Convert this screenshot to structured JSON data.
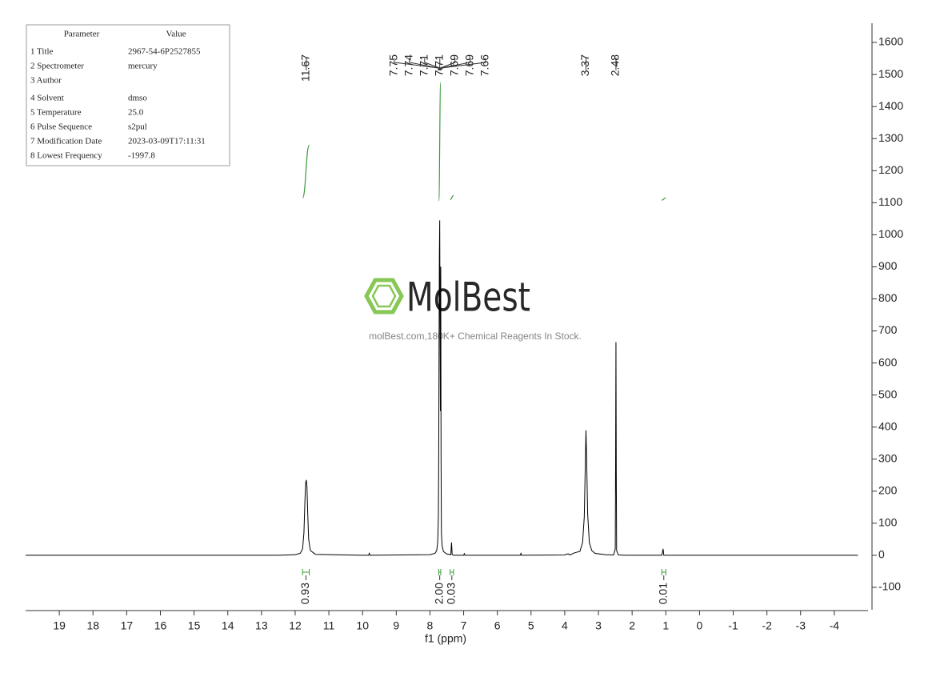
{
  "chart_data": {
    "type": "line",
    "xlabel": "f1 (ppm)",
    "color": "#000000",
    "integral_color": "#3a9a3a",
    "xlim": [
      20,
      -5
    ],
    "xticks": [
      19,
      18,
      17,
      16,
      15,
      14,
      13,
      12,
      11,
      10,
      9,
      8,
      7,
      6,
      5,
      4,
      3,
      2,
      1,
      0,
      -1,
      -2,
      -3,
      -4
    ],
    "ylim": [
      -170,
      1660
    ],
    "yticks": [
      -100,
      0,
      100,
      200,
      300,
      400,
      500,
      600,
      700,
      800,
      900,
      1000,
      1100,
      1200,
      1300,
      1400,
      1500,
      1600
    ],
    "x": [
      20,
      12.5,
      12.0,
      11.85,
      11.78,
      11.74,
      11.71,
      11.69,
      11.67,
      11.65,
      11.63,
      11.6,
      11.55,
      11.4,
      10.0,
      9.82,
      9.8,
      9.78,
      8.0,
      7.85,
      7.8,
      7.77,
      7.75,
      7.74,
      7.73,
      7.72,
      7.71,
      7.7,
      7.69,
      7.68,
      7.67,
      7.66,
      7.64,
      7.6,
      7.5,
      7.38,
      7.36,
      7.34,
      7.3,
      7.0,
      6.98,
      6.96,
      5.4,
      5.32,
      5.3,
      5.28,
      4.0,
      3.9,
      3.85,
      3.7,
      3.55,
      3.47,
      3.42,
      3.39,
      3.37,
      3.35,
      3.32,
      3.27,
      3.2,
      3.1,
      2.8,
      2.55,
      2.5,
      2.49,
      2.48,
      2.47,
      2.46,
      2.41,
      2.2,
      1.12,
      1.08,
      1.06,
      1.02,
      0.5,
      -4.7
    ],
    "values": [
      0,
      0,
      2,
      6,
      20,
      70,
      170,
      225,
      235,
      215,
      140,
      50,
      15,
      3,
      0,
      0,
      6,
      0,
      2,
      6,
      15,
      40,
      120,
      300,
      650,
      940,
      1045,
      700,
      450,
      900,
      300,
      70,
      30,
      12,
      4,
      2,
      40,
      2,
      0,
      0,
      5,
      0,
      0,
      0,
      6,
      0,
      1,
      5,
      1,
      8,
      12,
      40,
      120,
      280,
      390,
      300,
      130,
      40,
      15,
      6,
      2,
      1,
      20,
      300,
      665,
      250,
      15,
      1,
      0,
      0,
      20,
      0,
      0,
      0,
      0
    ],
    "peaks": [
      11.67,
      7.75,
      7.74,
      7.71,
      7.71,
      7.69,
      7.69,
      7.66,
      3.37,
      2.48
    ],
    "integrals": [
      {
        "x": [
          11.78,
          11.58
        ],
        "y": [
          1115,
          1280
        ],
        "value": 0.93
      },
      {
        "x": [
          7.74,
          7.68
        ],
        "y": [
          1105,
          1475
        ],
        "value": {
          "value": 2,
          "label": "2.00"
        }
      },
      {
        "x": [
          7.4,
          7.3
        ],
        "y": [
          1110,
          1122
        ],
        "value": 0.03
      },
      {
        "x": [
          1.12,
          1.0
        ],
        "y": [
          1108,
          1115
        ],
        "value": 0.01
      }
    ]
  },
  "parameters": {
    "header": [
      "Parameter",
      "Value"
    ],
    "rows": [
      [
        "1 Title",
        "2967-54-6P2527855"
      ],
      [
        "2 Spectrometer",
        "mercury"
      ],
      [
        "3 Author"
      ],
      [
        "4 Solvent",
        "dmso"
      ],
      [
        "5 Temperature",
        "25.0"
      ],
      [
        "6 Pulse Sequence",
        "s2pul"
      ],
      [
        "7 Modification Date",
        "2023-03-09T17:11:31"
      ],
      [
        "8 Lowest Frequency",
        "-1997.8"
      ]
    ]
  },
  "watermark": {
    "brand": "MolBest",
    "tagline": "molBest.com,180K+ Chemical Reagents In Stock."
  }
}
